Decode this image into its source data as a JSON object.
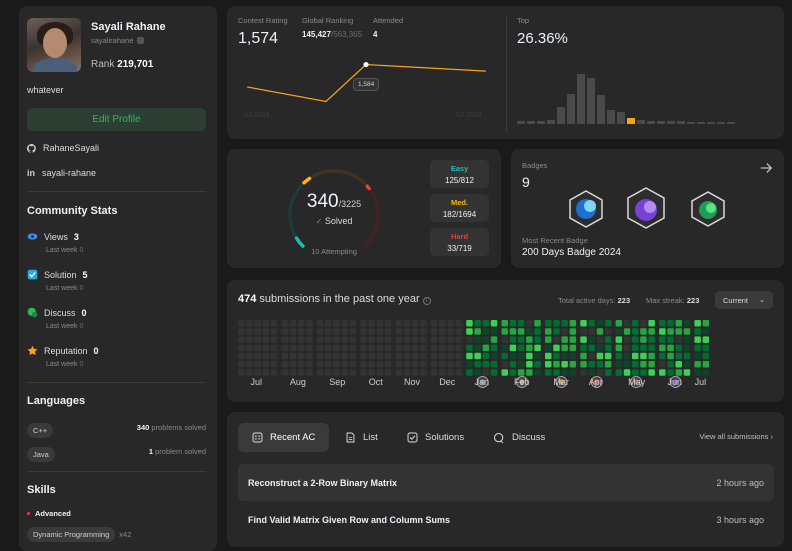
{
  "profile": {
    "name": "Sayali Rahane",
    "username": "sayalirahane",
    "rank_label": "Rank",
    "rank": "219,701",
    "bio": "whatever",
    "edit_label": "Edit Profile",
    "github": "RahaneSayali",
    "linkedin": "sayali-rahane"
  },
  "community": {
    "title": "Community Stats",
    "items": [
      {
        "label": "Views",
        "value": "3",
        "sub": "Last week",
        "subval": "0",
        "icon": "eye-icon",
        "color": "#3c8ef7"
      },
      {
        "label": "Solution",
        "value": "5",
        "sub": "Last week",
        "subval": "0",
        "icon": "solution-icon",
        "color": "#29a8e0"
      },
      {
        "label": "Discuss",
        "value": "0",
        "sub": "Last week",
        "subval": "0",
        "icon": "discuss-icon",
        "color": "#2cbb5d"
      },
      {
        "label": "Reputation",
        "value": "0",
        "sub": "Last week",
        "subval": "0",
        "icon": "star-icon",
        "color": "#ffa116"
      }
    ]
  },
  "languages": {
    "title": "Languages",
    "items": [
      {
        "name": "C++",
        "count": "340",
        "unit": "problems solved"
      },
      {
        "name": "Java",
        "count": "1",
        "unit": "problem solved"
      }
    ]
  },
  "skills": {
    "title": "Skills",
    "level": "Advanced",
    "items": [
      {
        "name": "Dynamic Programming",
        "count": "x42"
      }
    ]
  },
  "contest": {
    "rating_label": "Contest Rating",
    "rating": "1,574",
    "global_label": "Global Ranking",
    "global_rank": "145,427",
    "global_total": "/563,365",
    "attended_label": "Attended",
    "attended": "4",
    "tooltip": "1,584",
    "x_start": "Jul 2024",
    "x_end": "Jul 2024",
    "top_label": "Top",
    "top_value": "26.36%",
    "colors": {
      "line": "#ffa116",
      "point": "#ffffff"
    }
  },
  "chart_data": {
    "type": "line",
    "title": "Contest Rating",
    "x": [
      1,
      2,
      3,
      4
    ],
    "values": [
      1550,
      1528,
      1584,
      1574
    ],
    "xlabel": "",
    "ylabel": "",
    "tick_labels": [
      "Jul 2024",
      "Jul 2024"
    ],
    "annotation": "1,584"
  },
  "top_histogram": {
    "values": [
      3,
      3,
      3,
      4,
      17,
      30,
      50,
      46,
      29,
      14,
      12,
      6,
      4,
      3,
      3,
      3,
      3,
      2,
      2,
      2,
      2,
      2
    ],
    "highlight_index": 11,
    "colors": {
      "bar": "#4a4a4a",
      "highlight": "#ffa116"
    }
  },
  "solved": {
    "count": "340",
    "total": "/3225",
    "label": "Solved",
    "attempting": "10 Attempting",
    "difficulty": [
      {
        "name": "Easy",
        "value": "125/812",
        "color": "#1cbaba",
        "ratio": 0.154
      },
      {
        "name": "Med.",
        "value": "182/1694",
        "color": "#ffb700",
        "ratio": 0.107
      },
      {
        "name": "Hard",
        "value": "33/719",
        "color": "#f63737",
        "ratio": 0.046
      }
    ]
  },
  "badges": {
    "label": "Badges",
    "count": "9",
    "recent_label": "Most Recent Badge",
    "recent": "200 Days Badge 2024"
  },
  "heatmap": {
    "count": "474",
    "text": "submissions in the past one year",
    "active_label": "Total active days:",
    "active": "223",
    "streak_label": "Max streak:",
    "streak": "223",
    "period": "Current",
    "months": [
      "Jul",
      "Aug",
      "Sep",
      "Oct",
      "Nov",
      "Dec",
      "Jan",
      "Feb",
      "Mar",
      "Apr",
      "May",
      "Jun",
      "Jul"
    ]
  },
  "recent": {
    "tabs": [
      {
        "label": "Recent AC",
        "icon": "list-check-icon"
      },
      {
        "label": "List",
        "icon": "document-icon"
      },
      {
        "label": "Solutions",
        "icon": "checkbox-icon"
      },
      {
        "label": "Discuss",
        "icon": "chat-icon"
      }
    ],
    "view_all": "View all submissions",
    "items": [
      {
        "title": "Reconstruct a 2-Row Binary Matrix",
        "time": "2 hours ago"
      },
      {
        "title": "Find Valid Matrix Given Row and Column Sums",
        "time": "3 hours ago"
      }
    ]
  }
}
